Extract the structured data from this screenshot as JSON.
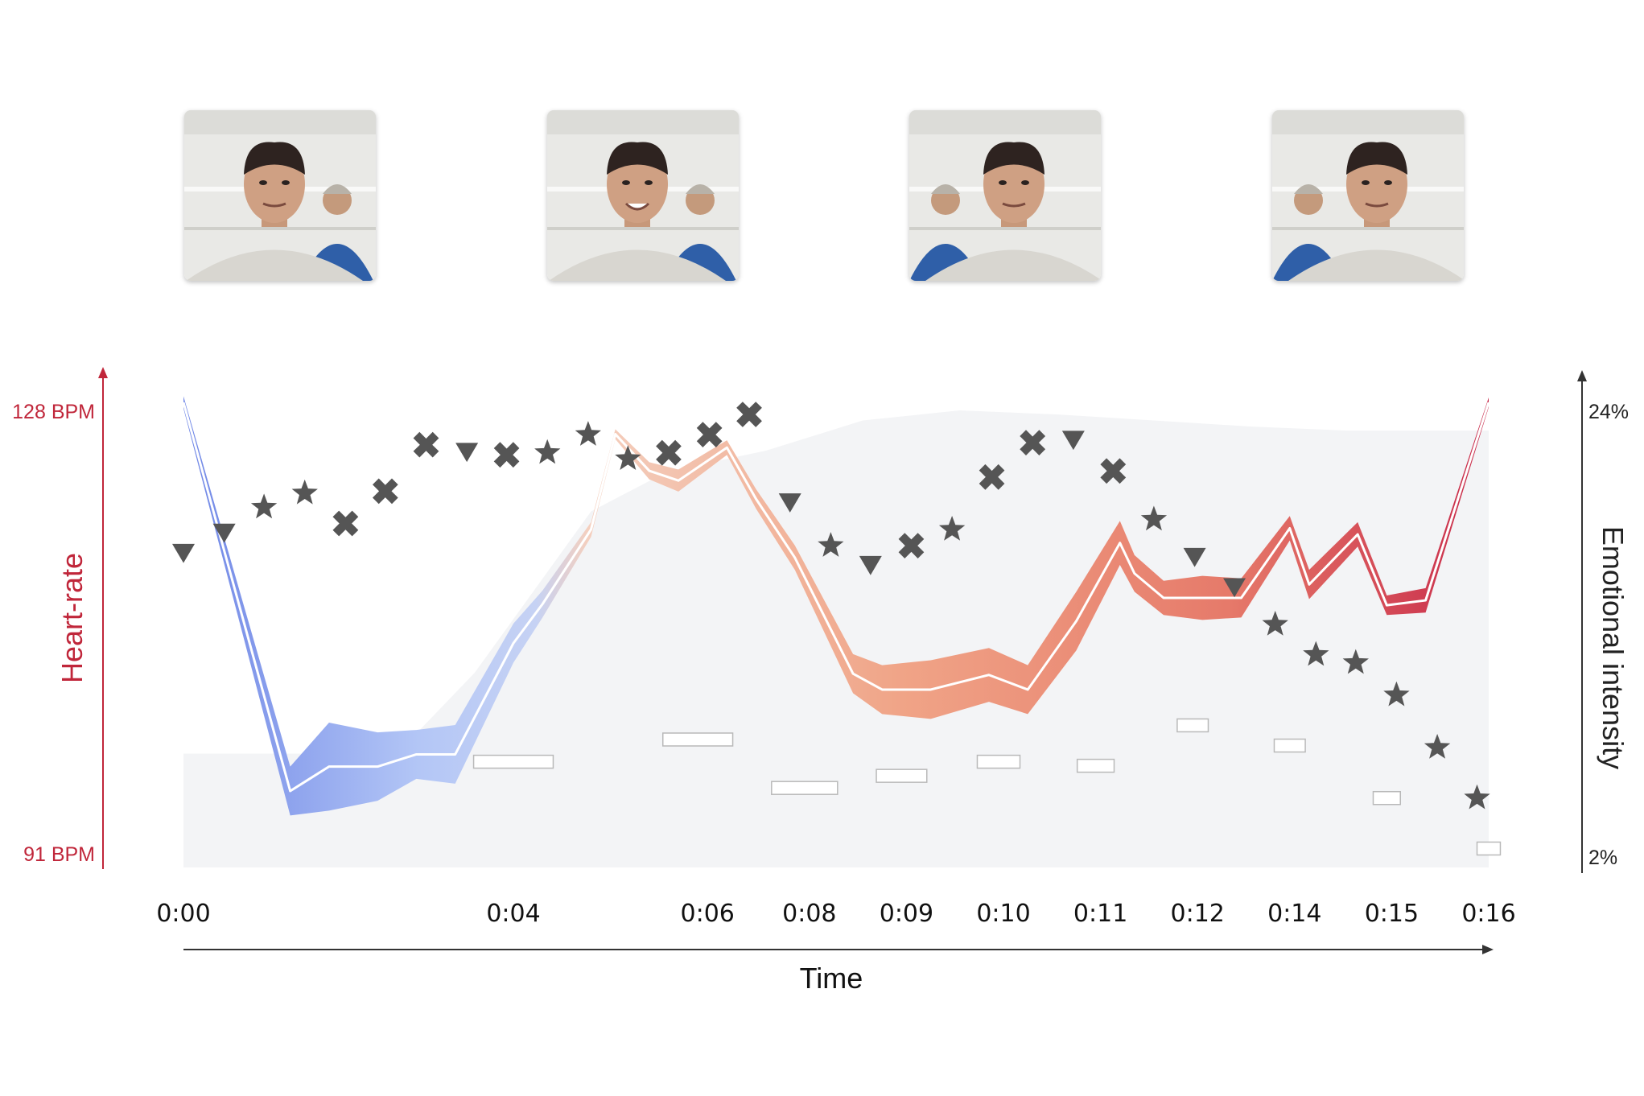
{
  "chart_data": {
    "type": "line",
    "xlabel": "Time",
    "x_ticks": [
      "0:00",
      "0:04",
      "0:06",
      "0:08",
      "0:09",
      "0:10",
      "0:11",
      "0:12",
      "0:14",
      "0:15",
      "0:16"
    ],
    "x_tick_positions": [
      0.0,
      3.4,
      5.4,
      6.45,
      7.45,
      8.45,
      9.45,
      10.45,
      11.45,
      12.45,
      13.45
    ],
    "x_range": [
      0,
      13.45
    ],
    "left_axis": {
      "label": "Heart-rate",
      "min_label": "91 BPM",
      "max_label": "128 BPM",
      "ylim": [
        91,
        128
      ],
      "color": "#c0263a"
    },
    "right_axis": {
      "label": "Emotional intensity",
      "min_label": "2%",
      "max_label": "24%",
      "ylim": [
        2,
        24
      ],
      "color": "#333333"
    },
    "heart_rate": {
      "x": [
        0.0,
        1.1,
        1.5,
        2.0,
        2.4,
        2.8,
        3.4,
        3.7,
        4.2,
        4.45,
        4.8,
        5.1,
        5.6,
        5.9,
        6.3,
        6.9,
        7.2,
        7.7,
        8.3,
        8.7,
        9.2,
        9.65,
        9.8,
        10.1,
        10.5,
        10.9,
        11.4,
        11.6,
        12.1,
        12.4,
        12.8,
        13.45
      ],
      "y": [
        128,
        96.2,
        98.2,
        98.2,
        99.2,
        99.2,
        108.3,
        111.5,
        117.6,
        125.4,
        122.4,
        121.6,
        124.3,
        120.1,
        115.3,
        105.8,
        104.5,
        104.5,
        105.7,
        104.5,
        110.1,
        116.5,
        114.0,
        112.0,
        112.0,
        112.0,
        117.7,
        113.1,
        117.2,
        111.4,
        111.8,
        128.0
      ],
      "band": [
        0.5,
        2.0,
        3.6,
        2.8,
        2.0,
        2.4,
        1.6,
        1.1,
        0.6,
        0.4,
        0.7,
        0.9,
        0.6,
        0.8,
        1.0,
        1.6,
        2.0,
        2.4,
        2.2,
        2.0,
        2.4,
        1.8,
        1.5,
        1.4,
        1.8,
        1.6,
        1.0,
        1.2,
        1.0,
        0.8,
        1.0,
        0.4
      ]
    },
    "background_area": {
      "x": [
        0.0,
        2.2,
        3.0,
        3.6,
        4.2,
        5.0,
        6.0,
        7.0,
        8.0,
        9.0,
        10.0,
        11.0,
        12.0,
        13.45
      ],
      "y": [
        7.0,
        7.0,
        11.0,
        15.0,
        19.0,
        21.0,
        22.0,
        23.5,
        24.0,
        23.8,
        23.5,
        23.2,
        23.0,
        23.0
      ]
    },
    "rect_markers": {
      "x": [
        3.4,
        5.3,
        6.4,
        7.4,
        8.4,
        9.4,
        10.4,
        11.4,
        12.4,
        13.45
      ],
      "y": [
        6.6,
        7.7,
        5.3,
        5.9,
        6.6,
        6.4,
        8.4,
        7.4,
        4.8,
        2.3
      ],
      "w": [
        0.82,
        0.72,
        0.68,
        0.52,
        0.44,
        0.38,
        0.32,
        0.32,
        0.28,
        0.24
      ]
    },
    "symbols": [
      {
        "x": 0.0,
        "y": 17.0,
        "shape": "triangle"
      },
      {
        "x": 0.42,
        "y": 18.0,
        "shape": "triangle"
      },
      {
        "x": 0.83,
        "y": 19.2,
        "shape": "star"
      },
      {
        "x": 1.25,
        "y": 19.9,
        "shape": "star"
      },
      {
        "x": 1.67,
        "y": 18.4,
        "shape": "cross"
      },
      {
        "x": 2.08,
        "y": 20.0,
        "shape": "cross"
      },
      {
        "x": 2.5,
        "y": 22.3,
        "shape": "cross"
      },
      {
        "x": 2.92,
        "y": 22.0,
        "shape": "triangle"
      },
      {
        "x": 3.33,
        "y": 21.8,
        "shape": "cross"
      },
      {
        "x": 3.75,
        "y": 21.9,
        "shape": "star"
      },
      {
        "x": 4.17,
        "y": 22.8,
        "shape": "star"
      },
      {
        "x": 4.58,
        "y": 21.6,
        "shape": "star"
      },
      {
        "x": 5.0,
        "y": 21.9,
        "shape": "cross"
      },
      {
        "x": 5.42,
        "y": 22.8,
        "shape": "cross"
      },
      {
        "x": 5.83,
        "y": 23.8,
        "shape": "cross"
      },
      {
        "x": 6.25,
        "y": 19.5,
        "shape": "triangle"
      },
      {
        "x": 6.67,
        "y": 17.3,
        "shape": "star"
      },
      {
        "x": 7.08,
        "y": 16.4,
        "shape": "triangle"
      },
      {
        "x": 7.5,
        "y": 17.3,
        "shape": "cross"
      },
      {
        "x": 7.92,
        "y": 18.1,
        "shape": "star"
      },
      {
        "x": 8.33,
        "y": 20.7,
        "shape": "cross"
      },
      {
        "x": 8.75,
        "y": 22.4,
        "shape": "cross"
      },
      {
        "x": 9.17,
        "y": 22.6,
        "shape": "triangle"
      },
      {
        "x": 9.58,
        "y": 21.0,
        "shape": "cross"
      },
      {
        "x": 10.0,
        "y": 18.6,
        "shape": "star"
      },
      {
        "x": 10.42,
        "y": 16.8,
        "shape": "triangle"
      },
      {
        "x": 10.83,
        "y": 15.3,
        "shape": "triangle"
      },
      {
        "x": 11.25,
        "y": 13.4,
        "shape": "star"
      },
      {
        "x": 11.67,
        "y": 11.9,
        "shape": "star"
      },
      {
        "x": 12.08,
        "y": 11.5,
        "shape": "star"
      },
      {
        "x": 12.5,
        "y": 9.9,
        "shape": "star"
      },
      {
        "x": 12.92,
        "y": 7.3,
        "shape": "star"
      },
      {
        "x": 13.33,
        "y": 4.8,
        "shape": "star"
      }
    ],
    "grid": false
  },
  "colors": {
    "hr_low": "#6f86e6",
    "hr_mid": "#f2c1a8",
    "hr_high": "#c82a4a",
    "area": "#f3f4f6",
    "marker": "#555555",
    "axis_left": "#c0263a",
    "axis_right": "#333333"
  },
  "thumbnails": [
    "thumbnail-1",
    "thumbnail-2",
    "thumbnail-3",
    "thumbnail-4"
  ]
}
